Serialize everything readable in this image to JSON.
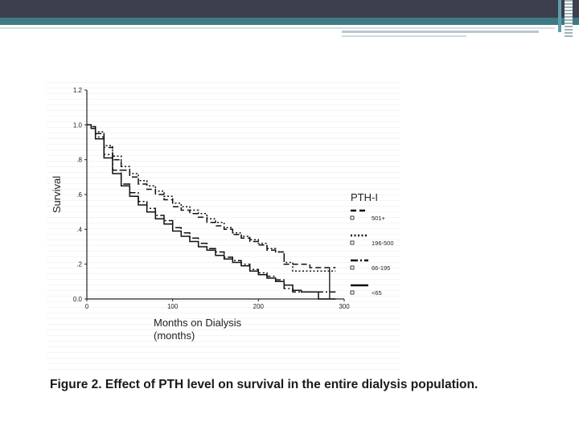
{
  "slide": {
    "caption": "Figure 2. Effect of PTH level on survival in the entire dialysis population.",
    "colors": {
      "header_dark": "#3b3f4e",
      "header_teal": "#3f7a84"
    }
  },
  "chart_data": {
    "type": "line",
    "ylabel": "Survival",
    "xlabel_line1": "Months on Dialysis",
    "xlabel_line2": "(months)",
    "legend_title": "PTH-I",
    "legend_placement": "right",
    "xlim": [
      0,
      300
    ],
    "ylim": [
      0,
      1.2
    ],
    "x_ticks": [
      0,
      100,
      200,
      300
    ],
    "x_tick_labels": [
      "0",
      "100",
      "200",
      "300"
    ],
    "y_ticks": [
      0,
      0.2,
      0.4,
      0.6,
      0.8,
      1.0,
      1.2
    ],
    "y_tick_labels": [
      "0.0",
      ".2",
      ".4",
      ".6",
      ".8",
      "1.0",
      "1.2"
    ],
    "grid": false,
    "series": [
      {
        "name": "501+",
        "dash": "dash",
        "x": [
          0,
          5,
          10,
          20,
          30,
          40,
          50,
          60,
          70,
          80,
          90,
          100,
          110,
          120,
          130,
          140,
          150,
          160,
          170,
          180,
          190,
          200,
          210,
          220,
          230,
          240,
          250,
          260,
          270,
          275,
          280,
          285,
          290
        ],
        "y": [
          1.0,
          0.99,
          0.95,
          0.87,
          0.8,
          0.74,
          0.7,
          0.66,
          0.63,
          0.6,
          0.57,
          0.53,
          0.51,
          0.49,
          0.47,
          0.44,
          0.42,
          0.4,
          0.37,
          0.35,
          0.33,
          0.31,
          0.28,
          0.27,
          0.2,
          0.2,
          0.2,
          0.18,
          0.18,
          0.18,
          0.18,
          0.18,
          0.18
        ]
      },
      {
        "name": "196-500",
        "dash": "dot",
        "x": [
          0,
          5,
          10,
          20,
          30,
          40,
          50,
          60,
          70,
          80,
          90,
          100,
          110,
          120,
          130,
          140,
          150,
          160,
          170,
          180,
          190,
          200,
          210,
          220,
          230,
          240,
          250,
          260,
          270,
          275,
          280,
          285,
          290
        ],
        "y": [
          1.0,
          0.99,
          0.96,
          0.88,
          0.82,
          0.76,
          0.72,
          0.68,
          0.65,
          0.62,
          0.59,
          0.55,
          0.53,
          0.51,
          0.49,
          0.46,
          0.44,
          0.41,
          0.38,
          0.36,
          0.34,
          0.32,
          0.29,
          0.27,
          0.21,
          0.16,
          0.16,
          0.16,
          0.16,
          0.16,
          0.16,
          0.16,
          0.16
        ]
      },
      {
        "name": "66-195",
        "dash": "dashdot",
        "x": [
          0,
          5,
          10,
          20,
          30,
          40,
          50,
          60,
          70,
          80,
          90,
          100,
          110,
          120,
          130,
          140,
          150,
          160,
          170,
          180,
          190,
          200,
          210,
          220,
          230,
          240,
          250,
          260,
          270,
          275,
          280,
          285,
          290
        ],
        "y": [
          1.0,
          0.98,
          0.93,
          0.83,
          0.74,
          0.66,
          0.61,
          0.56,
          0.52,
          0.48,
          0.45,
          0.41,
          0.38,
          0.35,
          0.32,
          0.29,
          0.27,
          0.24,
          0.22,
          0.2,
          0.17,
          0.15,
          0.13,
          0.11,
          0.06,
          0.04,
          0.04,
          0.04,
          0.04,
          0.04,
          0.04,
          0.04,
          0.04
        ]
      },
      {
        "name": "<65",
        "dash": "solid",
        "x": [
          0,
          5,
          10,
          20,
          30,
          40,
          50,
          60,
          70,
          80,
          90,
          100,
          110,
          120,
          130,
          140,
          150,
          160,
          170,
          180,
          190,
          200,
          210,
          220,
          230,
          240,
          250,
          260,
          270,
          275,
          280,
          285,
          290
        ],
        "y": [
          1.0,
          0.98,
          0.92,
          0.81,
          0.72,
          0.65,
          0.59,
          0.54,
          0.5,
          0.46,
          0.43,
          0.39,
          0.36,
          0.33,
          0.3,
          0.28,
          0.25,
          0.23,
          0.21,
          0.19,
          0.16,
          0.14,
          0.12,
          0.1,
          0.08,
          0.05,
          0.04,
          0.04,
          0.0,
          0.0,
          0.0,
          0.0,
          0.0
        ]
      }
    ]
  }
}
